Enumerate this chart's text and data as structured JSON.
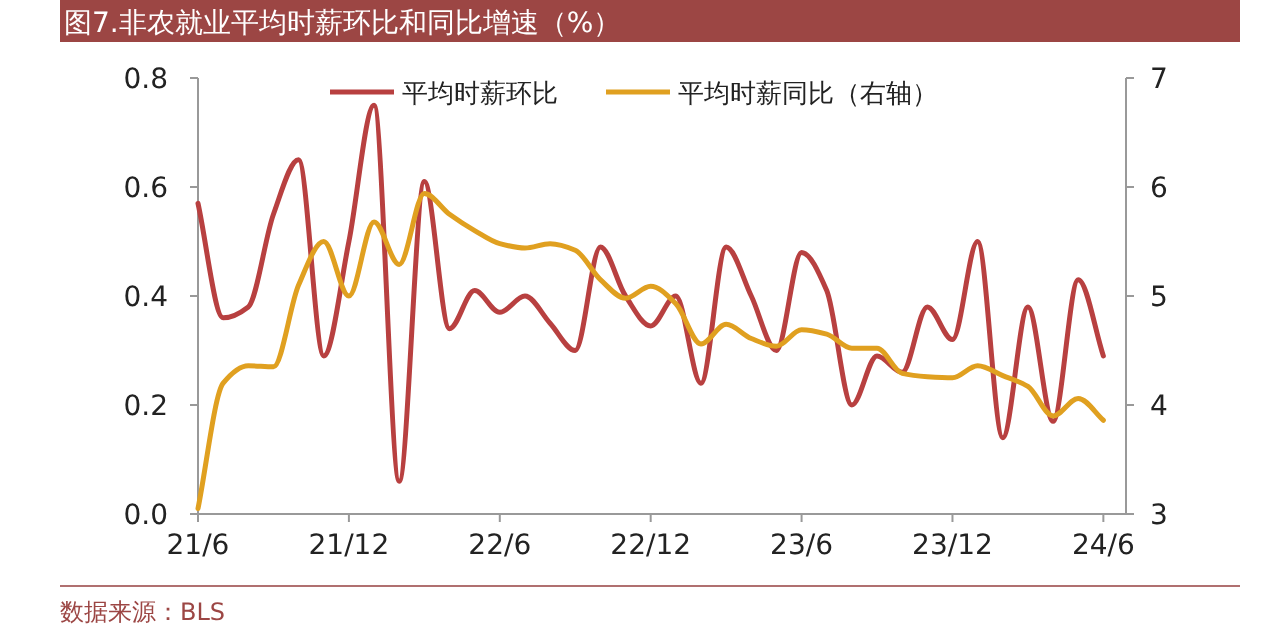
{
  "chart_data": {
    "type": "line",
    "title": "图7.非农就业平均时薪环比和同比增速（%）",
    "annotations": [
      "数据来源：BLS"
    ],
    "categories": [
      "21/6",
      null,
      null,
      null,
      null,
      null,
      "21/12",
      null,
      null,
      null,
      null,
      null,
      "22/6",
      null,
      null,
      null,
      null,
      null,
      "22/12",
      null,
      null,
      null,
      null,
      null,
      "23/6",
      null,
      null,
      null,
      null,
      null,
      "23/12",
      null,
      null,
      null,
      null,
      null,
      "24/6"
    ],
    "series": [
      {
        "name": "平均时薪环比",
        "color": "#b84040",
        "values": [
          0.57,
          0.36,
          0.38,
          0.55,
          0.65,
          0.29,
          0.5,
          0.75,
          0.06,
          0.61,
          0.34,
          0.41,
          0.37,
          0.4,
          0.35,
          0.3,
          0.49,
          0.4,
          0.345,
          0.4,
          0.24,
          0.49,
          0.4,
          0.3,
          0.48,
          0.41,
          0.2,
          0.29,
          0.26,
          0.38,
          0.32,
          0.5,
          0.14,
          0.38,
          0.17,
          0.43,
          0.29
        ]
      },
      {
        "name": "平均时薪同比（右轴）",
        "color": "#e0a020",
        "axis": "y2",
        "values": [
          3.05,
          4.2,
          4.36,
          4.35,
          5.1,
          5.5,
          5.0,
          5.68,
          5.29,
          5.94,
          5.75,
          5.6,
          5.48,
          5.44,
          5.48,
          5.42,
          5.15,
          4.98,
          5.09,
          4.93,
          4.56,
          4.74,
          4.61,
          4.54,
          4.69,
          4.65,
          4.52,
          4.52,
          4.29,
          4.26,
          4.25,
          4.36,
          4.27,
          4.17,
          3.9,
          4.06,
          3.86
        ]
      }
    ],
    "ylim": [
      0,
      0.8
    ],
    "yticks": [
      {
        "value": 0,
        "label": "0.0"
      },
      0.2,
      0.4,
      0.6,
      0.8
    ],
    "y2lim": [
      3,
      7
    ],
    "y2ticks": [
      3,
      4,
      5,
      6,
      7
    ],
    "legend": "top",
    "grid": false
  }
}
